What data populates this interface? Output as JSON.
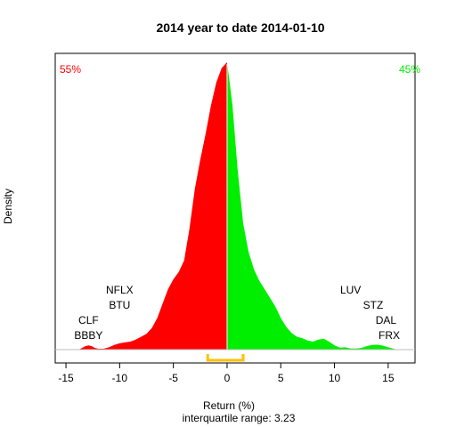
{
  "chart_data": {
    "type": "area",
    "title": "2014  year to date 2014-01-10",
    "xlabel": "Return (%)",
    "ylabel": "Density",
    "subtitle": "interquartile range: 3.23",
    "xlim": [
      -16.0,
      17.5
    ],
    "ylim": [
      0,
      1.0
    ],
    "xticks": [
      -15,
      -10,
      -5,
      0,
      5,
      10,
      15
    ],
    "xtick_labels": [
      "-15",
      "-10",
      "-5",
      "0",
      "5",
      "10",
      "15"
    ],
    "split_x": 0,
    "left_percent_label": "55%",
    "right_percent_label": "45%",
    "colors": {
      "negative": "#ff0000",
      "positive": "#00ee00",
      "iqr": "#ffc000",
      "axis": "#000000",
      "baseline": "#bebebe"
    },
    "iqr_range": [
      -1.8,
      1.5
    ],
    "density_points": {
      "x": [
        -13.8,
        -13.5,
        -13.2,
        -12.9,
        -12.6,
        -12.3,
        -12.0,
        -11.5,
        -11.0,
        -10.5,
        -10.0,
        -9.5,
        -9.0,
        -8.5,
        -8.0,
        -7.5,
        -7.0,
        -6.5,
        -6.0,
        -5.5,
        -5.0,
        -4.5,
        -4.0,
        -3.5,
        -3.0,
        -2.5,
        -2.0,
        -1.5,
        -1.0,
        -0.5,
        0.0,
        0.5,
        1.0,
        1.5,
        2.0,
        2.5,
        3.0,
        3.5,
        4.0,
        4.5,
        5.0,
        5.5,
        6.0,
        6.5,
        7.0,
        7.5,
        8.0,
        8.5,
        9.0,
        9.5,
        10.0,
        10.5,
        11.0,
        11.5,
        12.0,
        12.5,
        13.0,
        13.5,
        14.0,
        14.5,
        15.0,
        15.5,
        16.0
      ],
      "y": [
        0.0,
        0.006,
        0.012,
        0.015,
        0.012,
        0.006,
        0.003,
        0.003,
        0.008,
        0.016,
        0.022,
        0.025,
        0.028,
        0.035,
        0.045,
        0.055,
        0.075,
        0.11,
        0.16,
        0.21,
        0.245,
        0.27,
        0.31,
        0.42,
        0.56,
        0.66,
        0.75,
        0.85,
        0.93,
        0.98,
        1.0,
        0.85,
        0.62,
        0.44,
        0.34,
        0.28,
        0.24,
        0.21,
        0.18,
        0.15,
        0.11,
        0.08,
        0.058,
        0.045,
        0.04,
        0.032,
        0.028,
        0.035,
        0.038,
        0.028,
        0.015,
        0.007,
        0.008,
        0.004,
        0.004,
        0.006,
        0.012,
        0.016,
        0.017,
        0.014,
        0.008,
        0.003,
        0.0
      ]
    },
    "annotations": [
      {
        "text": "NFLX",
        "x": -10.0,
        "row": 4
      },
      {
        "text": "BTU",
        "x": -10.0,
        "row": 3
      },
      {
        "text": "CLF",
        "x": -12.9,
        "row": 2
      },
      {
        "text": "BBBY",
        "x": -12.9,
        "row": 1
      },
      {
        "text": "LUV",
        "x": 11.5,
        "row": 4
      },
      {
        "text": "STZ",
        "x": 13.6,
        "row": 3
      },
      {
        "text": "DAL",
        "x": 14.8,
        "row": 2
      },
      {
        "text": "FRX",
        "x": 15.1,
        "row": 1
      }
    ]
  }
}
